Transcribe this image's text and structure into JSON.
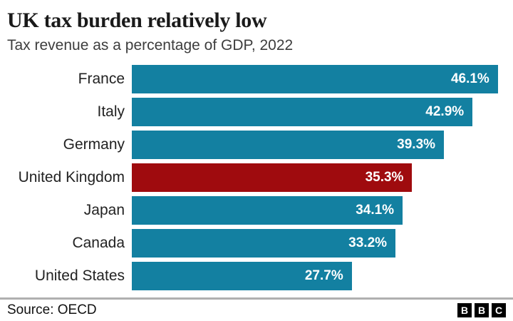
{
  "header": {
    "title": "UK tax burden relatively low",
    "subtitle": "Tax revenue as a percentage of GDP, 2022"
  },
  "chart_data": {
    "type": "bar",
    "orientation": "horizontal",
    "title": "UK tax burden relatively low",
    "subtitle": "Tax revenue as a percentage of GDP, 2022",
    "categories": [
      "France",
      "Italy",
      "Germany",
      "United Kingdom",
      "Japan",
      "Canada",
      "United States"
    ],
    "values": [
      46.1,
      42.9,
      39.3,
      35.3,
      34.1,
      33.2,
      27.7
    ],
    "value_labels": [
      "46.1%",
      "42.9%",
      "39.3%",
      "35.3%",
      "34.1%",
      "33.2%",
      "27.7%"
    ],
    "highlight_category": "United Kingdom",
    "bar_color": "#1380A1",
    "highlight_color": "#9F0B0E",
    "xlim": [
      0,
      48
    ],
    "grid": false,
    "legend": false,
    "value_label_position": "inside-end"
  },
  "footer": {
    "source": "Source: OECD",
    "logo_letters": [
      "B",
      "B",
      "C"
    ]
  }
}
